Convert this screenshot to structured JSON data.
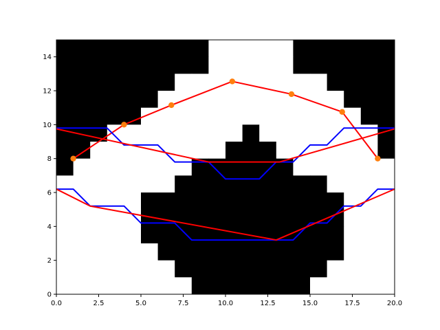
{
  "chart_data": {
    "type": "line",
    "title": "",
    "xlabel": "",
    "ylabel": "",
    "xlim": [
      0,
      20
    ],
    "ylim": [
      0,
      15
    ],
    "grid": false,
    "legend": "none",
    "x_ticks": [
      0,
      2.5,
      5,
      7.5,
      10,
      12.5,
      15,
      17.5,
      20
    ],
    "x_tick_labels": [
      "0.0",
      "2.5",
      "5.0",
      "7.5",
      "10.0",
      "12.5",
      "15.0",
      "17.5",
      "20.0"
    ],
    "y_ticks": [
      0,
      2,
      4,
      6,
      8,
      10,
      12,
      14
    ],
    "y_tick_labels": [
      "0",
      "2",
      "4",
      "6",
      "8",
      "10",
      "12",
      "14"
    ],
    "background_image": {
      "description": "binary grid, 20 columns x 15 rows; 1 = white, 0 = black; rows listed from top (y 14-15) to bottom (y 0-1)",
      "colors": {
        "filled": "#ffffff",
        "empty": "#000000"
      },
      "rows": [
        "00000000011111000000",
        "00000000011111000000",
        "00000001111111110000",
        "00000011111111111000",
        "00000111111111111100",
        "00011111111011111110",
        "00111111110001111110",
        "01111111000000111111",
        "11111110000000001111",
        "11111000000000000111",
        "11111000000000000111",
        "11111000000000000111",
        "11111100000000000111",
        "11111110000000001111",
        "11111111000000011111"
      ]
    },
    "series": [
      {
        "style": "line+markers",
        "color": "#ff0000",
        "marker_color": "#ff7f0e",
        "points": [
          [
            1,
            8
          ],
          [
            4,
            10
          ],
          [
            6.8,
            11.15
          ],
          [
            10.4,
            12.55
          ],
          [
            13.9,
            11.8
          ],
          [
            16.9,
            10.75
          ],
          [
            19,
            8
          ]
        ]
      },
      {
        "style": "step",
        "color": "#0000ff",
        "points": [
          [
            0,
            9.8
          ],
          [
            3,
            9.8
          ],
          [
            4,
            8.8
          ],
          [
            6,
            8.8
          ],
          [
            7,
            7.8
          ],
          [
            9,
            7.8
          ],
          [
            10,
            6.8
          ],
          [
            12,
            6.8
          ],
          [
            13,
            7.8
          ],
          [
            14,
            7.8
          ],
          [
            15,
            8.8
          ],
          [
            16,
            8.8
          ],
          [
            17,
            9.8
          ],
          [
            20,
            9.8
          ]
        ]
      },
      {
        "style": "line",
        "color": "#ff0000",
        "points": [
          [
            0,
            9.75
          ],
          [
            9,
            7.8
          ],
          [
            13.2,
            7.8
          ],
          [
            20,
            9.75
          ]
        ]
      },
      {
        "style": "step",
        "color": "#0000ff",
        "points": [
          [
            0,
            6.2
          ],
          [
            1,
            6.2
          ],
          [
            2,
            5.2
          ],
          [
            4,
            5.2
          ],
          [
            5,
            4.2
          ],
          [
            7,
            4.2
          ],
          [
            8,
            3.2
          ],
          [
            14,
            3.2
          ],
          [
            15,
            4.2
          ],
          [
            16,
            4.2
          ],
          [
            17,
            5.2
          ],
          [
            18,
            5.2
          ],
          [
            19,
            6.2
          ],
          [
            20,
            6.2
          ]
        ]
      },
      {
        "style": "line",
        "color": "#ff0000",
        "points": [
          [
            0,
            6.2
          ],
          [
            2,
            5.2
          ],
          [
            13,
            3.2
          ],
          [
            20,
            6.2
          ]
        ]
      }
    ]
  }
}
